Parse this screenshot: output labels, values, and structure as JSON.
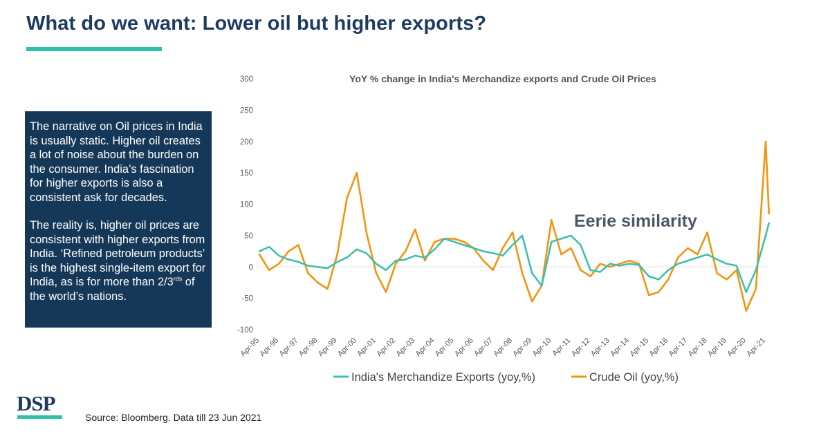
{
  "slide": {
    "title": "What do we want: Lower oil but higher exports?",
    "narrative_p1": "The narrative on Oil prices in India is usually static. Higher oil creates a lot of noise about the burden on the consumer. India’s fascination for higher exports is also a consistent ask for decades.",
    "narrative_p2_before": "The reality is, higher oil prices are consistent with higher exports from India. ‘Refined petroleum products’ is the highest single-item export for India, as is for more than 2/3",
    "narrative_p2_sup": "rds",
    "narrative_p2_after": " of the world’s nations.",
    "logo": "DSP",
    "source": "Source: Bloomberg. Data till 23 Jun 2021",
    "colors": {
      "title": "#1d3a5f",
      "accent": "#2ec0a8",
      "panel": "#153858"
    }
  },
  "chart_data": {
    "type": "line",
    "title": "YoY % change in India's Merchandize exports and Crude Oil Prices",
    "annotation": "Eerie similarity",
    "ylim": [
      -100,
      300
    ],
    "y_ticks": [
      -100,
      -50,
      0,
      50,
      100,
      150,
      200,
      250,
      300
    ],
    "x_ticks": [
      "Apr-95",
      "Apr-96",
      "Apr-97",
      "Apr-98",
      "Apr-99",
      "Apr-00",
      "Apr-01",
      "Apr-02",
      "Apr-03",
      "Apr-04",
      "Apr-05",
      "Apr-06",
      "Apr-07",
      "Apr-08",
      "Apr-09",
      "Apr-10",
      "Apr-11",
      "Apr-12",
      "Apr-13",
      "Apr-14",
      "Apr-15",
      "Apr-16",
      "Apr-17",
      "Apr-18",
      "Apr-19",
      "Apr-20",
      "Apr-21"
    ],
    "legend_position": "bottom",
    "grid": false,
    "series": [
      {
        "name": "India's Merchandize Exports (yoy,%)",
        "color": "#3fbfae",
        "x": [
          "Apr-95",
          "Oct-95",
          "Apr-96",
          "Oct-96",
          "Apr-97",
          "Oct-97",
          "Apr-98",
          "Oct-98",
          "Apr-99",
          "Oct-99",
          "Apr-00",
          "Oct-00",
          "Apr-01",
          "Oct-01",
          "Apr-02",
          "Oct-02",
          "Apr-03",
          "Oct-03",
          "Apr-04",
          "Oct-04",
          "Apr-05",
          "Oct-05",
          "Apr-06",
          "Oct-06",
          "Apr-07",
          "Oct-07",
          "Apr-08",
          "Oct-08",
          "Apr-09",
          "Oct-09",
          "Apr-10",
          "Oct-10",
          "Apr-11",
          "Oct-11",
          "Apr-12",
          "Oct-12",
          "Apr-13",
          "Oct-13",
          "Apr-14",
          "Oct-14",
          "Apr-15",
          "Oct-15",
          "Apr-16",
          "Oct-16",
          "Apr-17",
          "Oct-17",
          "Apr-18",
          "Oct-18",
          "Apr-19",
          "Oct-19",
          "Apr-20",
          "Oct-20",
          "Apr-21",
          "Jun-21"
        ],
        "y": [
          25,
          32,
          18,
          12,
          8,
          2,
          0,
          -2,
          8,
          15,
          28,
          22,
          5,
          -5,
          10,
          12,
          18,
          15,
          28,
          45,
          40,
          35,
          30,
          25,
          22,
          18,
          35,
          50,
          -10,
          -30,
          40,
          45,
          50,
          35,
          -5,
          -8,
          5,
          2,
          5,
          3,
          -15,
          -20,
          -5,
          5,
          10,
          15,
          20,
          12,
          5,
          2,
          -40,
          -5,
          50,
          70
        ]
      },
      {
        "name": "Crude Oil (yoy,%)",
        "color": "#f2940e",
        "x": [
          "Apr-95",
          "Oct-95",
          "Apr-96",
          "Oct-96",
          "Apr-97",
          "Oct-97",
          "Apr-98",
          "Oct-98",
          "Apr-99",
          "Oct-99",
          "Apr-00",
          "Oct-00",
          "Apr-01",
          "Oct-01",
          "Apr-02",
          "Oct-02",
          "Apr-03",
          "Oct-03",
          "Apr-04",
          "Oct-04",
          "Apr-05",
          "Oct-05",
          "Apr-06",
          "Oct-06",
          "Apr-07",
          "Oct-07",
          "Apr-08",
          "Oct-08",
          "Apr-09",
          "Oct-09",
          "Apr-10",
          "Oct-10",
          "Apr-11",
          "Oct-11",
          "Apr-12",
          "Oct-12",
          "Apr-13",
          "Oct-13",
          "Apr-14",
          "Oct-14",
          "Apr-15",
          "Oct-15",
          "Apr-16",
          "Oct-16",
          "Apr-17",
          "Oct-17",
          "Apr-18",
          "Oct-18",
          "Apr-19",
          "Oct-19",
          "Apr-20",
          "Oct-20",
          "Apr-21",
          "Jun-21"
        ],
        "y": [
          20,
          -5,
          5,
          25,
          35,
          -10,
          -25,
          -35,
          20,
          110,
          150,
          55,
          -10,
          -40,
          5,
          25,
          60,
          10,
          40,
          45,
          45,
          40,
          30,
          10,
          -5,
          30,
          55,
          -10,
          -55,
          -30,
          75,
          20,
          30,
          -5,
          -15,
          5,
          0,
          5,
          10,
          5,
          -45,
          -40,
          -20,
          15,
          30,
          20,
          55,
          -10,
          -20,
          -5,
          -70,
          -35,
          200,
          85
        ]
      }
    ]
  }
}
